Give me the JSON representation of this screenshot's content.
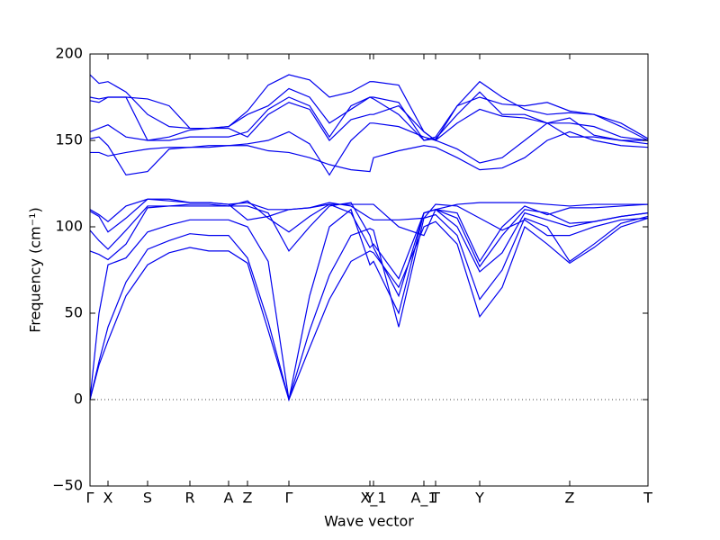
{
  "chart_data": {
    "type": "line",
    "xlabel": "Wave vector",
    "ylabel": "Frequency (cm⁻¹)",
    "xlim": [
      0,
      620
    ],
    "ylim": [
      -50,
      200
    ],
    "yticks": [
      {
        "value": -50,
        "label": "−50"
      },
      0,
      50,
      100,
      150,
      200
    ],
    "xticks": [
      {
        "value": 0,
        "label": "Γ"
      },
      {
        "value": 20,
        "label": "X"
      },
      {
        "value": 64,
        "label": "S"
      },
      {
        "value": 111,
        "label": "R"
      },
      {
        "value": 154,
        "label": "A"
      },
      {
        "value": 175,
        "label": "Z"
      },
      {
        "value": 221,
        "label": "Γ"
      },
      {
        "value": 311,
        "label": "Y"
      },
      {
        "value": 315,
        "label": "X_1"
      },
      {
        "value": 371,
        "label": "A_1"
      },
      {
        "value": 384,
        "label": "T"
      },
      {
        "value": 433,
        "label": "Y"
      },
      {
        "value": 533,
        "label": "Z"
      },
      {
        "value": 620,
        "label": "T"
      }
    ],
    "zero_line": true,
    "x": [
      0,
      10,
      20,
      40,
      64,
      88,
      111,
      132,
      154,
      175,
      198,
      221,
      244,
      266,
      290,
      311,
      315,
      343,
      371,
      384,
      408,
      433,
      458,
      483,
      508,
      533,
      560,
      590,
      620
    ],
    "series": [
      {
        "color": "#0000ee",
        "values": [
          0,
          20,
          34,
          60,
          78,
          85,
          88,
          86,
          86,
          79,
          40,
          0,
          30,
          58,
          80,
          86,
          85,
          65,
          100,
          103,
          90,
          48,
          65,
          100,
          90,
          79,
          88,
          100,
          105
        ]
      },
      {
        "color": "#0000ee",
        "values": [
          0,
          22,
          42,
          68,
          87,
          92,
          96,
          95,
          95,
          82,
          45,
          0,
          40,
          72,
          95,
          99,
          98,
          42,
          105,
          107,
          95,
          58,
          75,
          105,
          100,
          80,
          90,
          102,
          106
        ]
      },
      {
        "color": "#0000ee",
        "values": [
          0,
          50,
          78,
          82,
          97,
          101,
          104,
          104,
          104,
          100,
          80,
          0,
          60,
          100,
          110,
          78,
          80,
          50,
          108,
          110,
          100,
          74,
          85,
          108,
          104,
          100,
          103,
          106,
          108
        ]
      },
      {
        "color": "#0000ee",
        "values": [
          86,
          84,
          81,
          90,
          111,
          112,
          112,
          112,
          112,
          112,
          108,
          86,
          100,
          112,
          114,
          95,
          88,
          60,
          108,
          110,
          105,
          77,
          95,
          110,
          108,
          102,
          103,
          106,
          108
        ]
      },
      {
        "color": "#0000ee",
        "values": [
          98,
          92,
          87,
          98,
          112,
          112,
          113,
          113,
          112,
          115,
          105,
          97,
          106,
          113,
          108,
          88,
          90,
          70,
          108,
          110,
          108,
          80,
          100,
          112,
          107,
          111,
          111,
          112,
          113
        ]
      },
      {
        "color": "#0000ee",
        "values": [
          109,
          106,
          97,
          105,
          116,
          115,
          114,
          114,
          113,
          114,
          110,
          110,
          111,
          114,
          112,
          105,
          104,
          104,
          105,
          113,
          112,
          105,
          98,
          104,
          95,
          95,
          100,
          104,
          105
        ]
      },
      {
        "color": "#0000ee",
        "values": [
          110,
          107,
          103,
          112,
          116,
          116,
          114,
          114,
          113,
          104,
          106,
          110,
          111,
          113,
          113,
          113,
          113,
          100,
          95,
          110,
          113,
          114,
          114,
          114,
          113,
          112,
          113,
          113,
          113
        ]
      },
      {
        "color": "#0000ee",
        "values": [
          143,
          143,
          141,
          143,
          145,
          146,
          146,
          146,
          147,
          147,
          144,
          143,
          140,
          136,
          133,
          132,
          140,
          144,
          147,
          146,
          140,
          133,
          134,
          140,
          150,
          155,
          150,
          147,
          146
        ]
      },
      {
        "color": "#0000ee",
        "values": [
          151,
          152,
          147,
          130,
          132,
          145,
          146,
          147,
          147,
          148,
          150,
          155,
          148,
          130,
          150,
          160,
          160,
          158,
          152,
          150,
          145,
          137,
          140,
          150,
          160,
          163,
          153,
          150,
          148
        ]
      },
      {
        "color": "#0000ee",
        "values": [
          155,
          157,
          159,
          152,
          150,
          152,
          156,
          157,
          157,
          152,
          165,
          172,
          168,
          150,
          162,
          165,
          165,
          170,
          155,
          150,
          160,
          168,
          164,
          163,
          160,
          160,
          158,
          152,
          150
        ]
      },
      {
        "color": "#0000ee",
        "values": [
          173,
          172,
          175,
          175,
          150,
          150,
          152,
          152,
          152,
          155,
          168,
          175,
          170,
          152,
          170,
          175,
          175,
          172,
          150,
          151,
          165,
          178,
          165,
          165,
          160,
          152,
          152,
          150,
          150
        ]
      },
      {
        "color": "#0000ee",
        "values": [
          175,
          174,
          175,
          175,
          174,
          170,
          157,
          157,
          158,
          165,
          170,
          180,
          175,
          160,
          168,
          175,
          174,
          165,
          150,
          152,
          170,
          175,
          171,
          170,
          172,
          167,
          165,
          160,
          151
        ]
      },
      {
        "color": "#0000ee",
        "values": [
          188,
          183,
          184,
          178,
          165,
          158,
          157,
          157,
          158,
          167,
          182,
          188,
          185,
          175,
          178,
          184,
          184,
          182,
          155,
          150,
          170,
          184,
          175,
          168,
          165,
          166,
          165,
          158,
          150
        ]
      }
    ]
  }
}
